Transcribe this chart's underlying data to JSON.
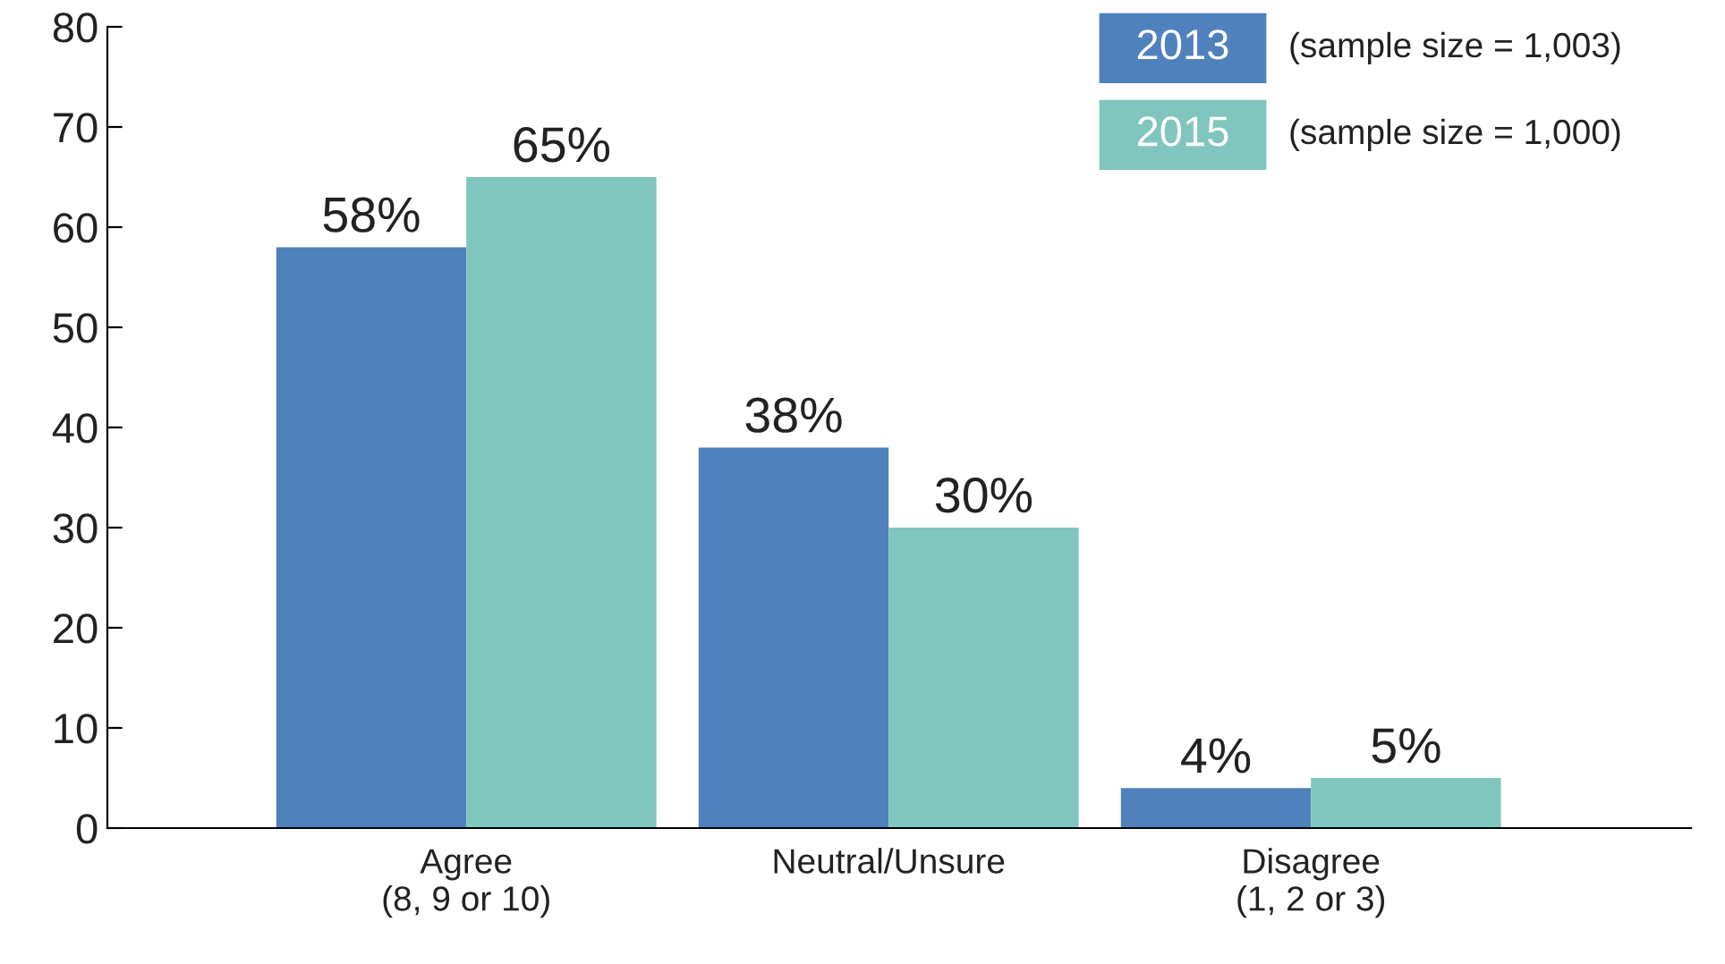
{
  "chart_data": {
    "type": "bar",
    "categories": [
      "Agree\n(8, 9 or 10)",
      "Neutral/Unsure",
      "Disagree\n(1, 2 or 3)"
    ],
    "series": [
      {
        "name": "2013",
        "color": "#4f81bd",
        "values": [
          58,
          38,
          4
        ],
        "value_labels": [
          "58%",
          "38%",
          "4%"
        ]
      },
      {
        "name": "2015",
        "color": "#80c6be",
        "values": [
          65,
          30,
          5
        ],
        "value_labels": [
          "65%",
          "30%",
          "5%"
        ]
      }
    ],
    "annotations": [
      "(sample size = 1,003)",
      "(sample size = 1,000)"
    ],
    "ylim": [
      0,
      80
    ],
    "yticks": [
      0,
      10,
      20,
      30,
      40,
      50,
      60,
      70,
      80
    ],
    "grid": false,
    "legend": "top right"
  }
}
